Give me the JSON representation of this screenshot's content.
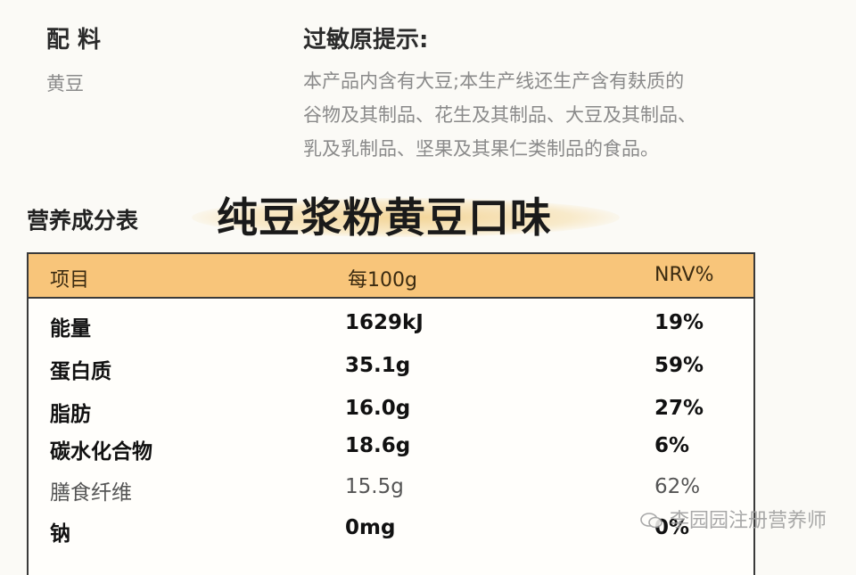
{
  "ingredients": {
    "title": "配 料",
    "text": "黄豆"
  },
  "allergen": {
    "title": "过敏原提示:",
    "lines": [
      "本产品内含有大豆;本生产线还生产含有麸质的",
      "谷物及其制品、花生及其制品、大豆及其制品、",
      "乳及乳制品、坚果及其果仁类制品的食品。"
    ]
  },
  "nutrition": {
    "title": "营养成分表",
    "product": "纯豆浆粉黄豆口味",
    "header": [
      "项目",
      "每100g",
      "NRV%"
    ],
    "rows": [
      [
        "能量",
        "1629kJ",
        "19%"
      ],
      [
        "蛋白质",
        "35.1g",
        "59%"
      ],
      [
        "脂肪",
        "16.0g",
        "27%"
      ],
      [
        "碳水化合物",
        "18.6g",
        "6%"
      ],
      [
        "膳食纤维",
        "15.5g",
        "62%"
      ],
      [
        "钠",
        "0mg",
        "0%"
      ]
    ]
  },
  "watermark": "李园园注册营养师"
}
